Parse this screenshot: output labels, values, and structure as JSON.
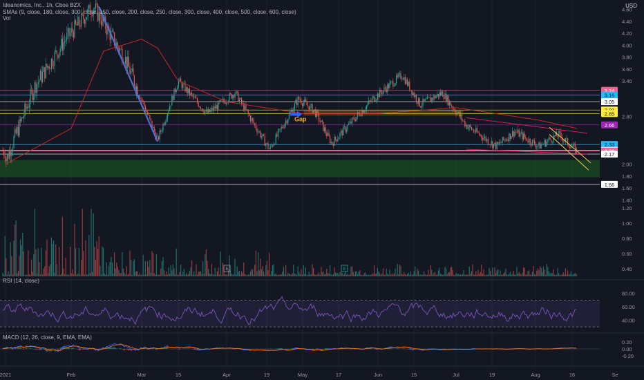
{
  "header": {
    "title": "Ideanomics, Inc., 1h, Cboe BZX",
    "sma_label": "SMAs (9, close, 180, close, 300, close, 150, close, 200, close, 250, close, 300, close, 400, close, 500, close, 600, close)",
    "vol_label": "Vol",
    "currency": "USD"
  },
  "annotations": {
    "gap": "Gap"
  },
  "colors": {
    "background": "#131722",
    "candle_up": "#26a69a",
    "candle_down": "#ef5350",
    "sma": "#c62828",
    "trend_blue": "#4c6fd6",
    "channel_yellow": "#f2c14e",
    "support_zone": "#1b5e20",
    "rsi": "#7e57c2",
    "macd": "#2962ff",
    "signal": "#ff6d00"
  },
  "chart_data": [
    {
      "type": "candlestick",
      "name": "price",
      "ylim": [
        1.45,
        4.7
      ],
      "y_ticks": [
        "4.60",
        "4.40",
        "4.20",
        "4.00",
        "3.80",
        "3.60",
        "3.40",
        "2.80",
        "2.00",
        "1.80",
        "1.60",
        "1.40"
      ],
      "x_ticks": [
        "2021",
        "Feb",
        "Mar",
        "15",
        "Apr",
        "19",
        "May",
        "17",
        "Jun",
        "15",
        "Jul",
        "19",
        "Aug",
        "16",
        "Se"
      ],
      "key_points": [
        {
          "x": "2021",
          "y": 2.05
        },
        {
          "x": "Jan 18",
          "y": 3.3
        },
        {
          "x": "Feb 1",
          "y": 4.1
        },
        {
          "x": "Feb 10",
          "y": 4.65
        },
        {
          "x": "Feb 22",
          "y": 3.8
        },
        {
          "x": "Mar 1",
          "y": 3.0
        },
        {
          "x": "Mar 8",
          "y": 2.4
        },
        {
          "x": "Mar 15",
          "y": 3.4
        },
        {
          "x": "Mar 25",
          "y": 2.85
        },
        {
          "x": "Apr 5",
          "y": 3.2
        },
        {
          "x": "Apr 19",
          "y": 2.25
        },
        {
          "x": "May 5",
          "y": 3.1
        },
        {
          "x": "May 10",
          "y": 2.9
        },
        {
          "x": "May 17",
          "y": 2.35
        },
        {
          "x": "Jun 1",
          "y": 3.1
        },
        {
          "x": "Jun 8",
          "y": 3.5
        },
        {
          "x": "Jun 15",
          "y": 3.0
        },
        {
          "x": "Jun 24",
          "y": 3.2
        },
        {
          "x": "Jul 5",
          "y": 2.65
        },
        {
          "x": "Jul 19",
          "y": 2.3
        },
        {
          "x": "Jul 26",
          "y": 2.55
        },
        {
          "x": "Aug 2",
          "y": 2.3
        },
        {
          "x": "Aug 10",
          "y": 2.5
        },
        {
          "x": "Aug 16",
          "y": 2.22
        }
      ],
      "sma": [
        {
          "x": "2021",
          "y": 2.0
        },
        {
          "x": "Feb",
          "y": 2.6
        },
        {
          "x": "Feb 15",
          "y": 3.9
        },
        {
          "x": "Mar",
          "y": 4.1
        },
        {
          "x": "Mar 8",
          "y": 3.95
        },
        {
          "x": "Mar 15",
          "y": 3.4
        },
        {
          "x": "Apr",
          "y": 3.05
        },
        {
          "x": "May",
          "y": 2.85
        },
        {
          "x": "Jun",
          "y": 2.85
        },
        {
          "x": "Jul",
          "y": 2.95
        },
        {
          "x": "Aug",
          "y": 2.75
        },
        {
          "x": "Aug 16",
          "y": 2.6
        }
      ],
      "horizontal_levels": [
        {
          "value": 3.24,
          "label": "3.24",
          "color": "#f06292"
        },
        {
          "value": 3.16,
          "label": "3.16",
          "color": "#29b6f6"
        },
        {
          "value": 3.05,
          "label": "3.05",
          "color": "#ffffff"
        },
        {
          "value": 2.91,
          "label": "2.91",
          "color": "#ffeb3b"
        },
        {
          "value": 2.85,
          "label": "2.85",
          "color": "#ffeb3b"
        },
        {
          "value": 2.66,
          "label": "2.66",
          "color": "#9c27b0"
        },
        {
          "value": 2.33,
          "label": "2.33",
          "color": "#29b6f6"
        },
        {
          "value": 2.23,
          "label": "2.23",
          "color": "#ffffff"
        },
        {
          "value": 2.22,
          "label": "2.22",
          "color": "#f06292"
        },
        {
          "value": 2.17,
          "label": "2.17",
          "color": "#ffffff"
        },
        {
          "value": 1.66,
          "label": "1.66",
          "color": "#ffffff"
        }
      ],
      "support_zone": [
        1.78,
        2.07
      ],
      "gap_box": [
        2.82,
        2.9
      ]
    },
    {
      "type": "bar",
      "name": "volume",
      "y_ticks": [
        "1.20",
        "1.00",
        "0.80",
        "0.60",
        "0.40"
      ],
      "ylim": [
        0.3,
        1.3
      ],
      "markers": [
        "E",
        "E"
      ]
    },
    {
      "type": "line",
      "name": "rsi",
      "label": "RSI (14, close)",
      "ylim": [
        25,
        90
      ],
      "y_ticks": [
        "80.00",
        "60.00",
        "40.00"
      ],
      "band": [
        30,
        70
      ]
    },
    {
      "type": "line",
      "name": "macd",
      "label": "MACD (12, 26, close, 9, EMA, EMA)",
      "ylim": [
        -0.3,
        0.3
      ],
      "y_ticks": [
        "0.20",
        "0.00",
        "-0.20"
      ]
    }
  ]
}
